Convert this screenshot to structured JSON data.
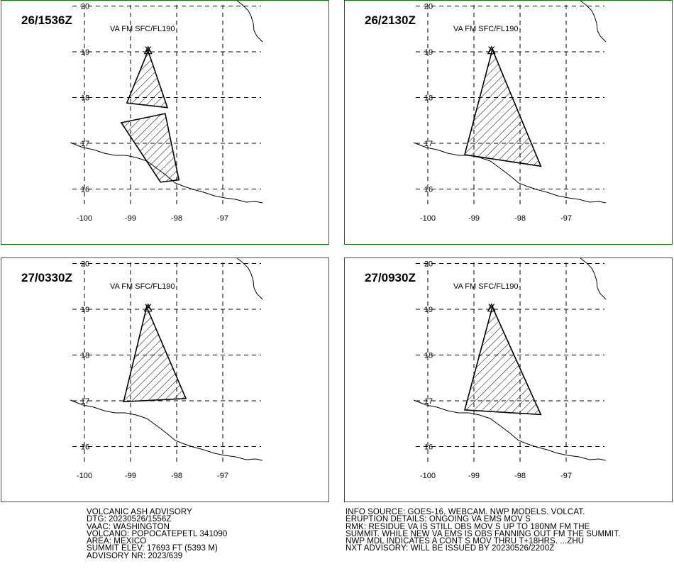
{
  "map": {
    "lon_ticks": [
      "-100",
      "-99",
      "-98",
      "-97"
    ],
    "lat_ticks": [
      "20",
      "19",
      "18",
      "17",
      "16"
    ],
    "volcano_lonlat": [
      -98.62,
      19.02
    ]
  },
  "panels": [
    {
      "time": "26/1536Z",
      "altitude": "VA FM SFC/FL190",
      "ash_areas": [
        [
          [
            -98.62,
            19.02
          ],
          [
            -99.08,
            17.88
          ],
          [
            -98.2,
            17.78
          ]
        ],
        [
          [
            -98.25,
            17.65
          ],
          [
            -99.2,
            17.45
          ],
          [
            -98.35,
            16.15
          ],
          [
            -97.95,
            16.2
          ]
        ]
      ]
    },
    {
      "time": "26/2130Z",
      "altitude": "VA FM SFC/FL190",
      "ash_areas": [
        [
          [
            -98.6,
            19.05
          ],
          [
            -99.2,
            16.75
          ],
          [
            -97.55,
            16.5
          ]
        ]
      ]
    },
    {
      "time": "27/0330Z",
      "altitude": "VA FM SFC/FL190",
      "ash_areas": [
        [
          [
            -98.65,
            19.05
          ],
          [
            -99.15,
            16.98
          ],
          [
            -97.8,
            17.05
          ]
        ]
      ]
    },
    {
      "time": "27/0930Z",
      "altitude": "VA FM SFC/FL190",
      "ash_areas": [
        [
          [
            -98.6,
            19.05
          ],
          [
            -99.2,
            16.8
          ],
          [
            -97.55,
            16.7
          ]
        ]
      ]
    }
  ],
  "advisory_left": [
    "VOLCANIC ASH ADVISORY",
    "DTG: 20230526/1556Z",
    "VAAC: WASHINGTON",
    "VOLCANO: POPOCATEPETL 341090",
    "AREA: MEXICO",
    "SUMMIT ELEV: 17693 FT (5393 M)",
    "ADVISORY NR: 2023/639"
  ],
  "advisory_right": [
    "INFO SOURCE: GOES-16. WEBCAM. NWP MODELS. VOLCAT.",
    "ERUPTION DETAILS: ONGOING VA EMS MOV S",
    "RMK: RESIDUE VA IS STILL OBS MOV S UP TO 180NM FM THE",
    "SUMMIT. WHILE NEW VA EMS IS OBS FANNING OUT FM THE SUMMIT.",
    "NWP MDL INDICATES A CONT S MOV THRU T+18HRS. ...ZHU",
    "NXT ADVISORY: WILL BE ISSUED BY 20230526/2200Z"
  ]
}
